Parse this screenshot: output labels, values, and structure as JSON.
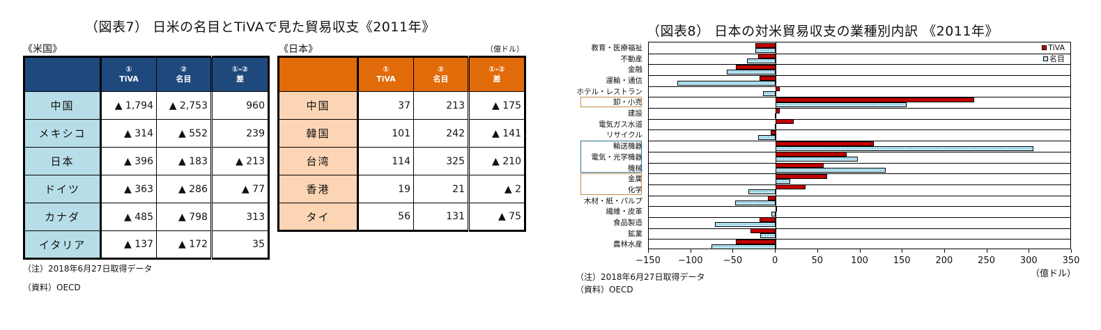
{
  "fig7": {
    "title": "（図表7） 日米の名目とTiVAで見た貿易収支《2011年》",
    "us_label": "《米国》",
    "jp_label": "《日本》",
    "unit": "（億ドル）",
    "headers": [
      {
        "num": "①",
        "name": "TiVA"
      },
      {
        "num": "②",
        "name": "名目"
      },
      {
        "num": "①-②",
        "name": "差"
      }
    ],
    "us_rows": [
      {
        "country": "中国",
        "tiva": "▲ 1,794",
        "nominal": "▲ 2,753",
        "diff": "960"
      },
      {
        "country": "メキシコ",
        "tiva": "▲ 314",
        "nominal": "▲ 552",
        "diff": "239"
      },
      {
        "country": "日本",
        "tiva": "▲ 396",
        "nominal": "▲ 183",
        "diff": "▲ 213"
      },
      {
        "country": "ドイツ",
        "tiva": "▲ 363",
        "nominal": "▲ 286",
        "diff": "▲ 77"
      },
      {
        "country": "カナダ",
        "tiva": "▲ 485",
        "nominal": "▲ 798",
        "diff": "313"
      },
      {
        "country": "イタリア",
        "tiva": "▲ 137",
        "nominal": "▲ 172",
        "diff": "35"
      }
    ],
    "jp_rows": [
      {
        "country": "中国",
        "tiva": "37",
        "nominal": "213",
        "diff": "▲ 175"
      },
      {
        "country": "韓国",
        "tiva": "101",
        "nominal": "242",
        "diff": "▲ 141"
      },
      {
        "country": "台湾",
        "tiva": "114",
        "nominal": "325",
        "diff": "▲ 210"
      },
      {
        "country": "香港",
        "tiva": "19",
        "nominal": "21",
        "diff": "▲ 2"
      },
      {
        "country": "タイ",
        "tiva": "56",
        "nominal": "131",
        "diff": "▲ 75"
      }
    ],
    "note": "（注）2018年6月27日取得データ",
    "source": "（資料）OECD"
  },
  "fig8": {
    "title": "（図表8） 日本の対米貿易収支の業種別内訳 《2011年》",
    "unit": "（億ドル）",
    "note": "（注）2018年6月27日取得データ",
    "source": "（資料）OECD",
    "legend": [
      "TiVA",
      "名目"
    ]
  },
  "colors": {
    "us_header": "#1f497d",
    "us_label_bg": "#b7dee8",
    "jp_header": "#e26b0a",
    "jp_label_bg": "#fcd5b4",
    "tiva_bar": "#c00000",
    "nominal_bar": "#bfe6f3",
    "group_box_orange": "#c0894a",
    "group_box_teal": "#31708f"
  },
  "chart_data": {
    "type": "bar",
    "orientation": "horizontal",
    "title": "（図表8） 日本の対米貿易収支の業種別内訳 《2011年》",
    "xlabel": "（億ドル）",
    "ylabel": "",
    "xlim": [
      -150,
      350
    ],
    "xticks": [
      -150,
      -100,
      -50,
      0,
      50,
      100,
      150,
      200,
      250,
      300,
      350
    ],
    "grid": "horizontal category separators",
    "legend_position": "top-right inside",
    "categories": [
      "教育・医療福祉",
      "不動産",
      "金融",
      "運輸・通信",
      "ホテル・レストラン",
      "卸・小売",
      "建設",
      "電気ガス水道",
      "リサイクル",
      "輸送機器",
      "電気・光学機器",
      "機械",
      "金属",
      "化学",
      "木材・紙・パルプ",
      "繊維・皮革",
      "食品製造",
      "鉱業",
      "農林水産"
    ],
    "series": [
      {
        "name": "TiVA",
        "values": [
          -24,
          -21,
          -47,
          -19,
          5,
          235,
          5,
          21,
          -6,
          116,
          84,
          57,
          61,
          35,
          -9,
          1,
          -19,
          -30,
          -47
        ]
      },
      {
        "name": "名目",
        "values": [
          -24,
          -34,
          -58,
          -116,
          -15,
          155,
          -1,
          -1,
          -21,
          305,
          97,
          130,
          17,
          -32,
          -48,
          -5,
          -72,
          -18,
          -76
        ]
      }
    ],
    "highlight_groups": [
      {
        "categories": [
          "卸・小売"
        ],
        "color": "orange"
      },
      {
        "categories": [
          "輸送機器",
          "電気・光学機器",
          "機械"
        ],
        "color": "teal"
      },
      {
        "categories": [
          "金属",
          "化学"
        ],
        "color": "orange"
      }
    ]
  }
}
